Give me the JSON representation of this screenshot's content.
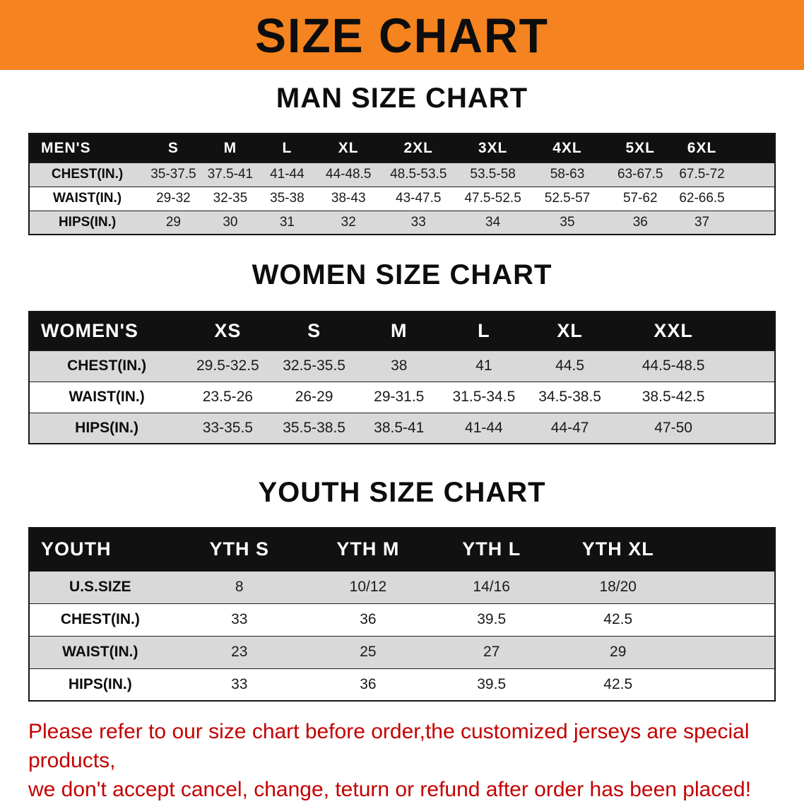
{
  "banner": {
    "title": "SIZE CHART",
    "background_color": "#F5831F",
    "text_color": "#0D0D0D"
  },
  "theme": {
    "accent_orange": "#F5831F",
    "header_black": "#111111",
    "row_gray": "#D9D9D9",
    "disclaimer_red": "#C40000"
  },
  "sections": [
    {
      "id": "men",
      "heading": "MAN SIZE CHART",
      "table": {
        "title": "MEN'S",
        "columns": [
          "S",
          "M",
          "L",
          "XL",
          "2XL",
          "3XL",
          "4XL",
          "5XL",
          "6XL"
        ],
        "rows": [
          {
            "label": "CHEST(IN.)",
            "values": [
              "35-37.5",
              "37.5-41",
              "41-44",
              "44-48.5",
              "48.5-53.5",
              "53.5-58",
              "58-63",
              "63-67.5",
              "67.5-72"
            ]
          },
          {
            "label": "WAIST(IN.)",
            "values": [
              "29-32",
              "32-35",
              "35-38",
              "38-43",
              "43-47.5",
              "47.5-52.5",
              "52.5-57",
              "57-62",
              "62-66.5"
            ]
          },
          {
            "label": "HIPS(IN.)",
            "values": [
              "29",
              "30",
              "31",
              "32",
              "33",
              "34",
              "35",
              "36",
              "37"
            ]
          }
        ]
      }
    },
    {
      "id": "women",
      "heading": "WOMEN SIZE CHART",
      "table": {
        "title": "WOMEN'S",
        "columns": [
          "XS",
          "S",
          "M",
          "L",
          "XL",
          "XXL"
        ],
        "rows": [
          {
            "label": "CHEST(IN.)",
            "values": [
              "29.5-32.5",
              "32.5-35.5",
              "38",
              "41",
              "44.5",
              "44.5-48.5"
            ]
          },
          {
            "label": "WAIST(IN.)",
            "values": [
              "23.5-26",
              "26-29",
              "29-31.5",
              "31.5-34.5",
              "34.5-38.5",
              "38.5-42.5"
            ]
          },
          {
            "label": "HIPS(IN.)",
            "values": [
              "33-35.5",
              "35.5-38.5",
              "38.5-41",
              "41-44",
              "44-47",
              "47-50"
            ]
          }
        ]
      }
    },
    {
      "id": "youth",
      "heading": "YOUTH SIZE CHART",
      "table": {
        "title": "YOUTH",
        "columns": [
          "YTH S",
          "YTH M",
          "YTH L",
          "YTH XL"
        ],
        "rows": [
          {
            "label": "U.S.SIZE",
            "values": [
              "8",
              "10/12",
              "14/16",
              "18/20"
            ]
          },
          {
            "label": "CHEST(IN.)",
            "values": [
              "33",
              "36",
              "39.5",
              "42.5"
            ]
          },
          {
            "label": "WAIST(IN.)",
            "values": [
              "23",
              "25",
              "27",
              "29"
            ]
          },
          {
            "label": "HIPS(IN.)",
            "values": [
              "33",
              "36",
              "39.5",
              "42.5"
            ]
          }
        ]
      }
    }
  ],
  "disclaimer": {
    "lines": [
      "Please refer to our size chart before order,the customized jerseys are special products,",
      "we don't accept cancel, change, teturn or refund after order has been placed!"
    ]
  }
}
